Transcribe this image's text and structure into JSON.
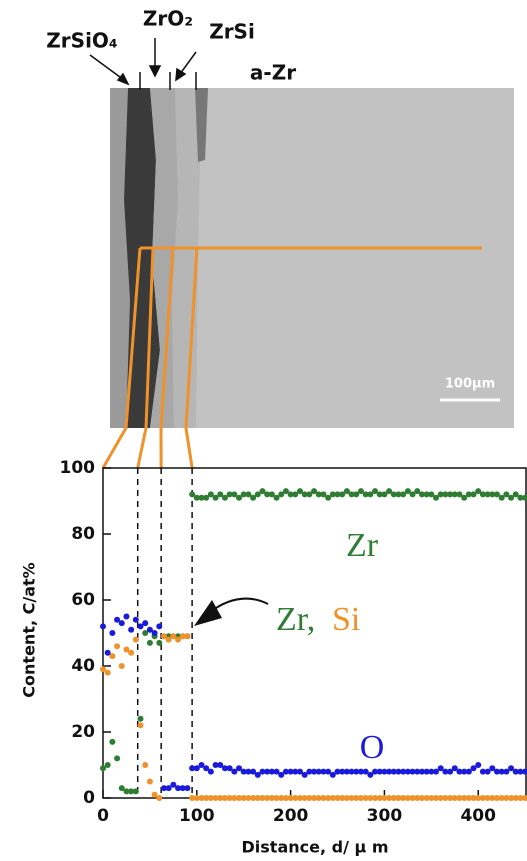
{
  "image": {
    "labels": [
      "ZrSiO₄",
      "ZrO₂",
      "ZrSi",
      "a-Zr"
    ],
    "scale_bar": "100μm"
  },
  "chart_data": {
    "type": "scatter",
    "x_label": "Distance, d/ μ m",
    "y_label": "Content, C/at%",
    "xlim": [
      0,
      452
    ],
    "ylim": [
      0,
      100
    ],
    "xticks": [
      0,
      100,
      200,
      300,
      400
    ],
    "yticks": [
      0,
      20,
      40,
      60,
      80,
      100
    ],
    "vlines": [
      37,
      62,
      95
    ],
    "annotation": "Zr,",
    "x": [
      0,
      5,
      10,
      15,
      20,
      25,
      30,
      35,
      40,
      45,
      50,
      55,
      60,
      65,
      70,
      75,
      80,
      85,
      90,
      95,
      100,
      105,
      110,
      115,
      120,
      125,
      130,
      135,
      140,
      145,
      150,
      155,
      160,
      165,
      170,
      175,
      180,
      185,
      190,
      195,
      200,
      205,
      210,
      215,
      220,
      225,
      230,
      235,
      240,
      245,
      250,
      255,
      260,
      265,
      270,
      275,
      280,
      285,
      290,
      295,
      300,
      305,
      310,
      315,
      320,
      325,
      330,
      335,
      340,
      345,
      350,
      355,
      360,
      365,
      370,
      375,
      380,
      385,
      390,
      395,
      400,
      405,
      410,
      415,
      420,
      425,
      430,
      435,
      440,
      445,
      450
    ],
    "series": [
      {
        "name": "Zr",
        "color": "#2e7d32",
        "values": [
          9,
          10,
          17,
          12,
          3,
          2,
          2,
          2,
          24,
          50,
          47,
          49,
          47,
          49,
          49,
          49,
          49,
          49,
          49,
          92,
          91,
          91,
          91,
          92,
          91,
          92,
          91,
          92,
          92,
          91,
          92,
          92,
          91,
          92,
          93,
          92,
          92,
          91,
          92,
          93,
          92,
          92,
          93,
          92,
          92,
          93,
          92,
          92,
          91,
          92,
          92,
          92,
          93,
          92,
          92,
          93,
          92,
          92,
          93,
          92,
          92,
          93,
          92,
          92,
          92,
          93,
          92,
          93,
          92,
          92,
          92,
          91,
          92,
          92,
          92,
          92,
          92,
          91,
          92,
          92,
          93,
          92,
          92,
          92,
          92,
          91,
          92,
          91,
          92,
          91,
          91
        ]
      },
      {
        "name": "Si",
        "color": "#f0922b",
        "values": [
          39,
          38,
          43,
          46,
          40,
          45,
          44,
          48,
          22,
          10,
          5,
          1,
          0,
          49,
          48,
          49,
          48,
          49,
          49,
          0,
          0,
          0,
          0,
          0,
          0,
          0,
          0,
          0,
          0,
          0,
          0,
          0,
          0,
          0,
          0,
          0,
          0,
          0,
          0,
          0,
          0,
          0,
          0,
          0,
          0,
          0,
          0,
          0,
          0,
          0,
          0,
          0,
          0,
          0,
          0,
          0,
          0,
          0,
          0,
          0,
          0,
          0,
          0,
          0,
          0,
          0,
          0,
          0,
          0,
          0,
          0,
          0,
          0,
          0,
          0,
          0,
          0,
          0,
          0,
          0,
          0,
          0,
          0,
          0,
          0,
          0,
          0,
          0,
          0,
          0,
          0
        ]
      },
      {
        "name": "O",
        "color": "#1a1adb",
        "values": [
          52,
          44,
          50,
          54,
          53,
          55,
          51,
          54,
          52,
          53,
          51,
          50,
          52,
          3,
          3,
          4,
          3,
          3,
          3,
          9,
          9,
          10,
          9,
          8,
          10,
          10,
          9,
          9,
          8,
          9,
          8,
          8,
          8,
          7,
          8,
          8,
          8,
          8,
          7,
          8,
          8,
          8,
          8,
          7,
          8,
          8,
          8,
          8,
          8,
          7,
          8,
          8,
          8,
          8,
          8,
          8,
          8,
          7,
          8,
          8,
          8,
          8,
          8,
          8,
          8,
          8,
          8,
          8,
          8,
          8,
          8,
          8,
          9,
          8,
          8,
          9,
          8,
          8,
          8,
          9,
          10,
          8,
          8,
          9,
          8,
          8,
          8,
          9,
          8,
          8,
          8
        ]
      }
    ]
  }
}
